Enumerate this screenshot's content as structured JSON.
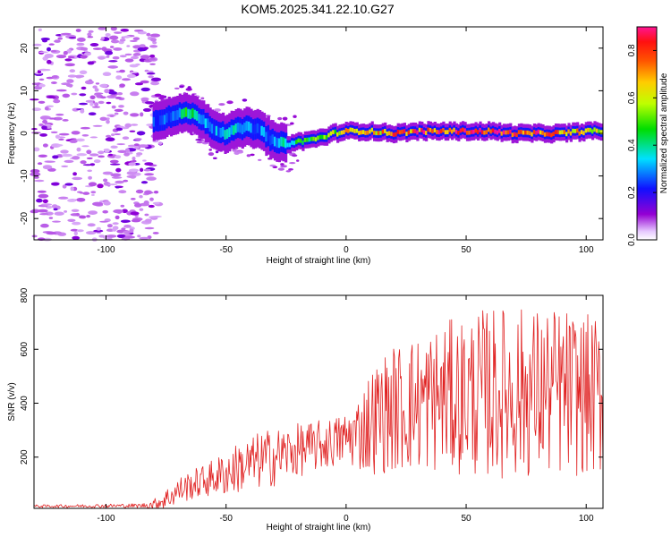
{
  "title": "KOM5.2025.341.22.10.G27",
  "chart_data": [
    {
      "type": "heatmap",
      "xlabel": "Height of straight line (km)",
      "ylabel": "Frequency (Hz)",
      "xlim": [
        -130,
        107
      ],
      "ylim": [
        -25,
        25
      ],
      "xticks": [
        -100,
        -50,
        0,
        50,
        100
      ],
      "yticks": [
        20,
        10,
        0,
        -10,
        -20
      ],
      "colorbar": {
        "label": "Normalized spectral amplitude",
        "range": [
          0.0,
          0.9
        ],
        "ticks": [
          0.0,
          0.2,
          0.4,
          0.6,
          0.8
        ]
      },
      "ridge": {
        "description_x": [
          -80,
          -72,
          -66,
          -60,
          -55,
          -50,
          -45,
          -40,
          -35,
          -30,
          -25,
          -20,
          -15,
          -10,
          -5,
          0,
          10,
          20,
          30,
          40,
          50,
          60,
          70,
          80,
          90,
          100,
          107
        ],
        "description_freq": [
          3,
          4,
          5,
          3.5,
          1,
          0,
          1,
          1.5,
          0.5,
          -2,
          -2.5,
          -2,
          -1.5,
          -1,
          0,
          0.5,
          0.5,
          0,
          0.5,
          0.5,
          0.5,
          0.5,
          0,
          0,
          0,
          0.5,
          0.5
        ],
        "amplitude": [
          0.25,
          0.3,
          0.45,
          0.35,
          0.3,
          0.35,
          0.35,
          0.3,
          0.3,
          0.3,
          0.4,
          0.45,
          0.5,
          0.55,
          0.6,
          0.65,
          0.7,
          0.75,
          0.8,
          0.85,
          0.9,
          0.9,
          0.85,
          0.8,
          0.75,
          0.7,
          0.65
        ]
      },
      "noise_region_x": [
        -130,
        -78
      ]
    },
    {
      "type": "line",
      "xlabel": "Height of straight line (km)",
      "ylabel": "SNR (v/v)",
      "xlim": [
        -130,
        107
      ],
      "ylim": [
        10,
        800
      ],
      "xticks": [
        -100,
        -50,
        0,
        50,
        100
      ],
      "yticks": [
        200,
        400,
        600,
        800
      ],
      "color": "#e02020",
      "envelope": {
        "x": [
          -130,
          -85,
          -80,
          -75,
          -70,
          -65,
          -60,
          -55,
          -50,
          -45,
          -40,
          -35,
          -30,
          -25,
          -20,
          -15,
          -10,
          -5,
          0,
          5,
          10,
          15,
          20,
          30,
          40,
          50,
          60,
          70,
          80,
          90,
          100,
          107
        ],
        "mean": [
          18,
          20,
          25,
          45,
          75,
          95,
          110,
          125,
          140,
          160,
          175,
          190,
          200,
          215,
          225,
          235,
          245,
          255,
          270,
          290,
          330,
          360,
          380,
          400,
          420,
          430,
          440,
          440,
          440,
          440,
          430,
          420
        ],
        "spread": [
          5,
          8,
          20,
          40,
          50,
          55,
          60,
          70,
          85,
          95,
          100,
          110,
          110,
          100,
          100,
          95,
          95,
          95,
          100,
          140,
          200,
          220,
          240,
          260,
          280,
          300,
          320,
          320,
          320,
          320,
          300,
          300
        ]
      }
    }
  ]
}
